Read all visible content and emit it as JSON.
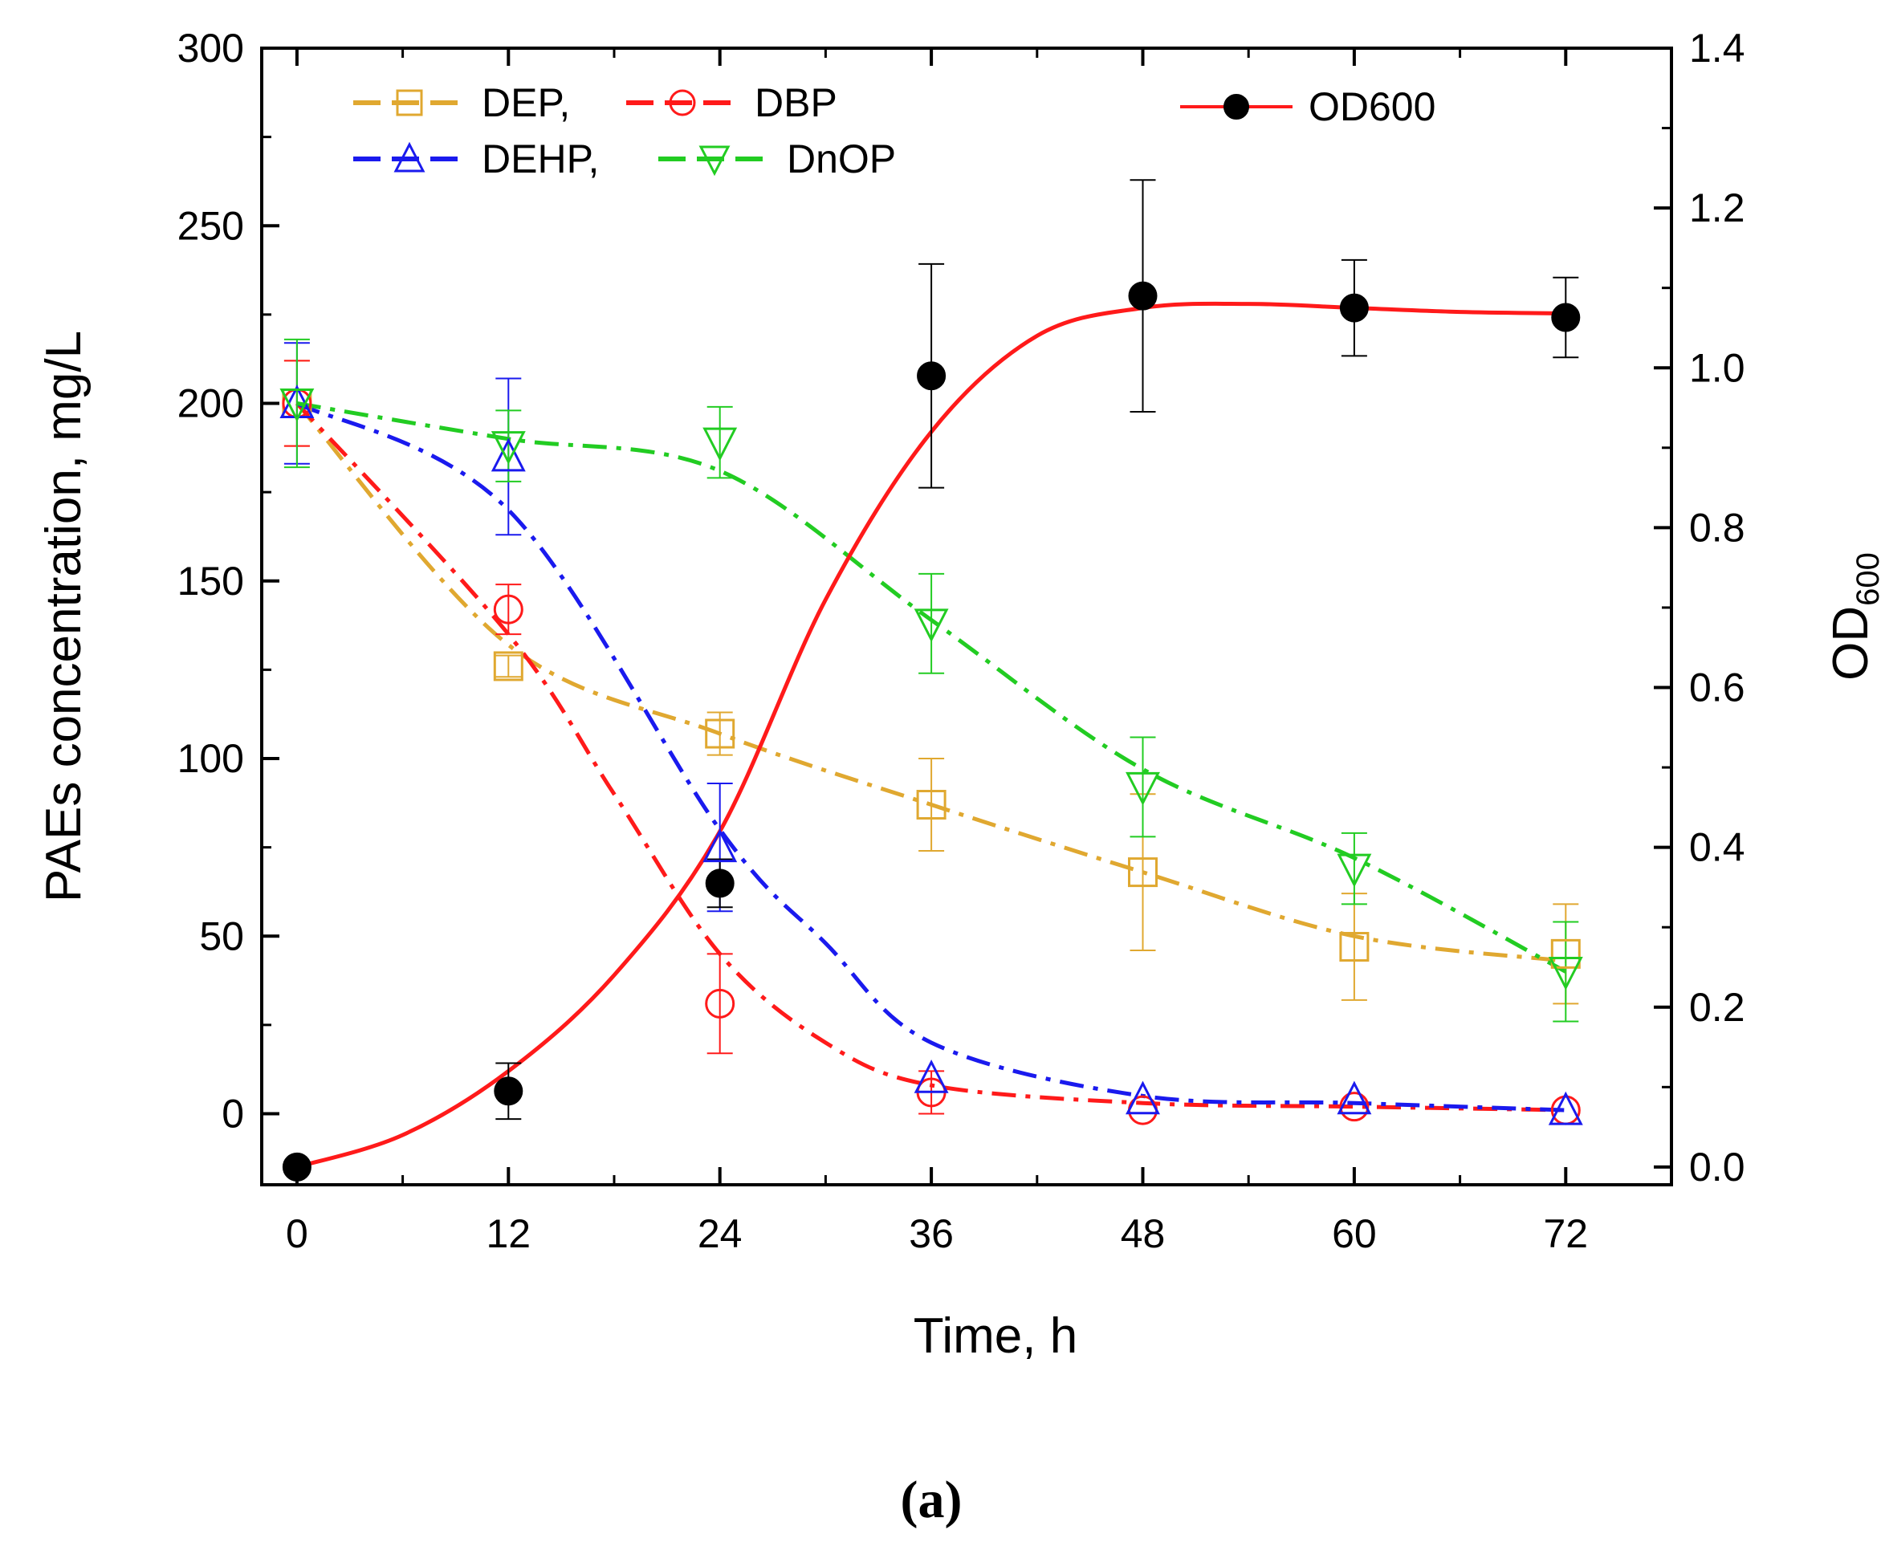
{
  "chart_data": {
    "type": "line",
    "x": [
      0,
      12,
      24,
      36,
      48,
      60,
      72
    ],
    "xlabel": "Time, h",
    "ylabel": "PAEs concentration, mg/L",
    "y2label_main": "OD",
    "y2label_sub": "600",
    "xlim": [
      -2,
      78
    ],
    "ylim": [
      -20,
      300
    ],
    "y2lim": [
      0,
      1.4
    ],
    "xticks": [
      "0",
      "12",
      "24",
      "36",
      "48",
      "60",
      "72"
    ],
    "yticks": [
      "0",
      "50",
      "100",
      "150",
      "200",
      "250",
      "300"
    ],
    "y2ticks": [
      "0.0",
      "0.2",
      "0.4",
      "0.6",
      "0.8",
      "1.0",
      "1.2",
      "1.4"
    ],
    "panel_label": "(a)",
    "series": [
      {
        "name": "DEP",
        "legend_label": "DEP,",
        "color": "#e0a830",
        "marker": "square",
        "axis": "left",
        "values": [
          200,
          126,
          107,
          87,
          68,
          47,
          45
        ],
        "errors": [
          12,
          3,
          6,
          13,
          22,
          15,
          14
        ],
        "fit": [
          [
            0,
            200
          ],
          [
            12,
            132
          ],
          [
            24,
            107
          ],
          [
            36,
            87
          ],
          [
            48,
            68
          ],
          [
            60,
            50
          ],
          [
            72,
            43
          ]
        ]
      },
      {
        "name": "DBP",
        "legend_label": "DBP",
        "color": "#ff1a1a",
        "marker": "circle",
        "axis": "left",
        "values": [
          200,
          142,
          31,
          6,
          1,
          2,
          1
        ],
        "errors": [
          12,
          7,
          14,
          6,
          0,
          0,
          0
        ],
        "fit": [
          [
            0,
            200
          ],
          [
            12,
            135
          ],
          [
            18,
            90
          ],
          [
            24,
            45
          ],
          [
            30,
            20
          ],
          [
            36,
            8
          ],
          [
            48,
            3
          ],
          [
            60,
            2
          ],
          [
            72,
            1
          ]
        ]
      },
      {
        "name": "DEHP",
        "legend_label": "DEHP,",
        "color": "#1a1aee",
        "marker": "triangle-up",
        "axis": "left",
        "values": [
          200,
          185,
          75,
          10,
          4,
          4,
          1
        ],
        "errors": [
          17,
          22,
          18,
          0,
          0,
          0,
          0
        ],
        "fit": [
          [
            0,
            200
          ],
          [
            12,
            170
          ],
          [
            24,
            80
          ],
          [
            30,
            48
          ],
          [
            36,
            20
          ],
          [
            48,
            5
          ],
          [
            60,
            3
          ],
          [
            72,
            1
          ]
        ]
      },
      {
        "name": "DnOP",
        "legend_label": "DnOP",
        "color": "#22cc22",
        "marker": "triangle-down",
        "axis": "left",
        "values": [
          200,
          188,
          189,
          138,
          92,
          69,
          40
        ],
        "errors": [
          18,
          10,
          10,
          14,
          14,
          10,
          14
        ],
        "fit": [
          [
            0,
            200
          ],
          [
            12,
            190
          ],
          [
            24,
            181
          ],
          [
            36,
            139
          ],
          [
            48,
            97
          ],
          [
            60,
            72
          ],
          [
            72,
            40
          ]
        ]
      },
      {
        "name": "OD600",
        "legend_label": "OD600",
        "color": "#ff1a1a",
        "marker_color": "#000000",
        "marker": "filled-circle",
        "axis": "right",
        "values": [
          0.0,
          0.095,
          0.355,
          0.99,
          1.09,
          1.075,
          1.063
        ],
        "errors": [
          0,
          0.035,
          0.03,
          0.14,
          0.145,
          0.06,
          0.05
        ],
        "fit": [
          [
            0,
            0.0
          ],
          [
            6,
            0.04
          ],
          [
            12,
            0.12
          ],
          [
            18,
            0.24
          ],
          [
            24,
            0.42
          ],
          [
            30,
            0.71
          ],
          [
            36,
            0.92
          ],
          [
            42,
            1.04
          ],
          [
            48,
            1.075
          ],
          [
            54,
            1.08
          ],
          [
            60,
            1.075
          ],
          [
            66,
            1.07
          ],
          [
            72,
            1.068
          ]
        ]
      }
    ]
  }
}
